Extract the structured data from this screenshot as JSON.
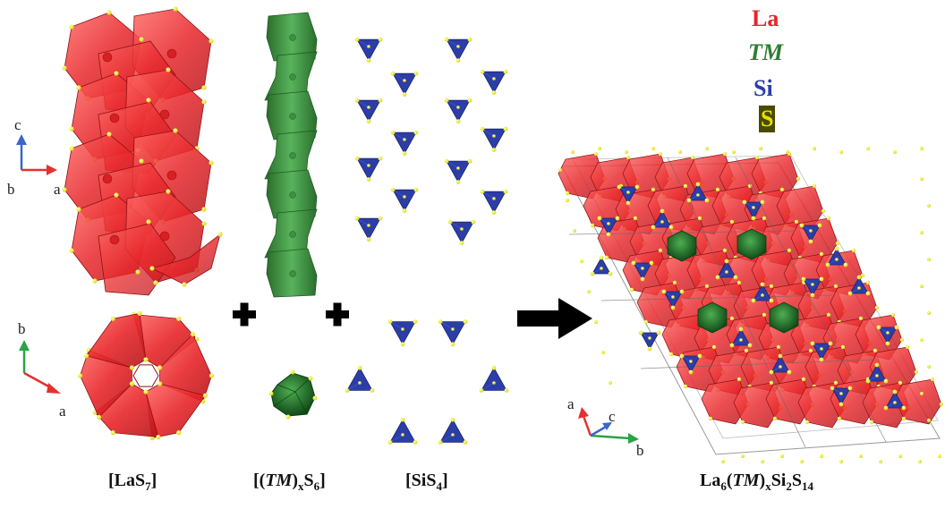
{
  "legend": {
    "la": {
      "label": "La",
      "color": "#e8262a"
    },
    "tm": {
      "label": "TM",
      "color": "#2e7d32"
    },
    "si": {
      "label": "Si",
      "color": "#2b3ea8"
    },
    "s": {
      "label": "S",
      "color": "#e3e200",
      "swatch": "#4a4a00"
    }
  },
  "colors": {
    "la_poly": "#e8262a",
    "tm_poly": "#2f8a35",
    "si_tetra": "#2b3ea8",
    "s_atom": "#eeee00",
    "arrow": "#000000"
  },
  "axes": {
    "top_left": {
      "vertical": "c",
      "horizontal": "a",
      "out": "b"
    },
    "bottom_left": {
      "vertical": "b",
      "horizontal": "a"
    },
    "right": {
      "up": "a",
      "diag": "c",
      "right": "b"
    }
  },
  "captions": {
    "las7": {
      "pre": "[LaS",
      "sub": "7",
      "post": "]"
    },
    "tms6": {
      "pre": "[(",
      "italic": "TM",
      "mid": ")",
      "sub1": "x",
      "mid2": "S",
      "sub2": "6",
      "post": "]"
    },
    "sis4": {
      "pre": "[SiS",
      "sub": "4",
      "post": "]"
    },
    "product": {
      "la": "La",
      "sub_la": "6",
      "open": "(",
      "italic": "TM",
      "close": ")",
      "sub_x": "x",
      "si": "Si",
      "sub_si": "2",
      "s": "S",
      "sub_s": "14"
    }
  },
  "icons": {
    "plus": "plus-icon",
    "arrow": "arrow-right-icon"
  }
}
